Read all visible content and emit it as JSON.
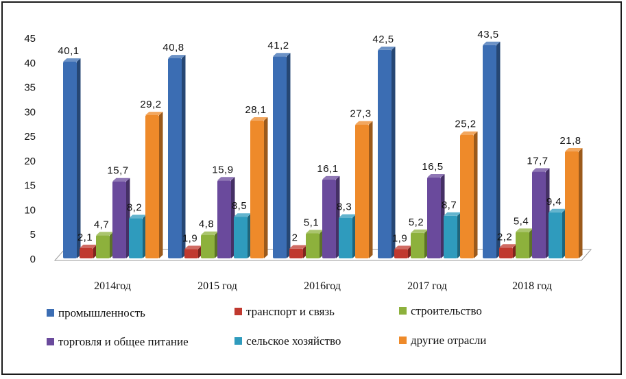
{
  "chart_data": {
    "type": "bar",
    "categories": [
      "2014год",
      "2015 год",
      "2016год",
      "2017 год",
      "2018 год"
    ],
    "series": [
      {
        "name": "промышленность",
        "values": [
          40.1,
          40.8,
          41.2,
          42.5,
          43.5
        ],
        "labels": [
          "40,1",
          "40,8",
          "41,2",
          "42,5",
          "43,5"
        ],
        "color": "#3b6db3"
      },
      {
        "name": "транспорт и связь",
        "values": [
          2.1,
          1.9,
          2,
          1.9,
          2.2
        ],
        "labels": [
          "2,1",
          "1,9",
          "2",
          "1,9",
          "2,2"
        ],
        "color": "#c0392f"
      },
      {
        "name": "строительство",
        "values": [
          4.7,
          4.8,
          5.1,
          5.2,
          5.4
        ],
        "labels": [
          "4,7",
          "4,8",
          "5,1",
          "5,2",
          "5,4"
        ],
        "color": "#8db13c"
      },
      {
        "name": "торговля и общее питание",
        "values": [
          15.7,
          15.9,
          16.1,
          16.5,
          17.7
        ],
        "labels": [
          "15,7",
          "15,9",
          "16,1",
          "16,5",
          "17,7"
        ],
        "color": "#6a4a9c"
      },
      {
        "name": "сельское хозяйство",
        "values": [
          8.2,
          8.5,
          8.3,
          8.7,
          9.4
        ],
        "labels": [
          "8,2",
          "8,5",
          "8,3",
          "8,7",
          "9,4"
        ],
        "color": "#2f9bbd"
      },
      {
        "name": "другие отрасли",
        "values": [
          29.2,
          28.1,
          27.3,
          25.2,
          21.8
        ],
        "labels": [
          "29,2",
          "28,1",
          "27,3",
          "25,2",
          "21,8"
        ],
        "color": "#ee8a2a"
      }
    ],
    "yticks": [
      "0",
      "5",
      "10",
      "15",
      "20",
      "25",
      "30",
      "35",
      "40",
      "45"
    ],
    "ylim": [
      0,
      45
    ],
    "grid": false,
    "legend_position": "bottom"
  }
}
